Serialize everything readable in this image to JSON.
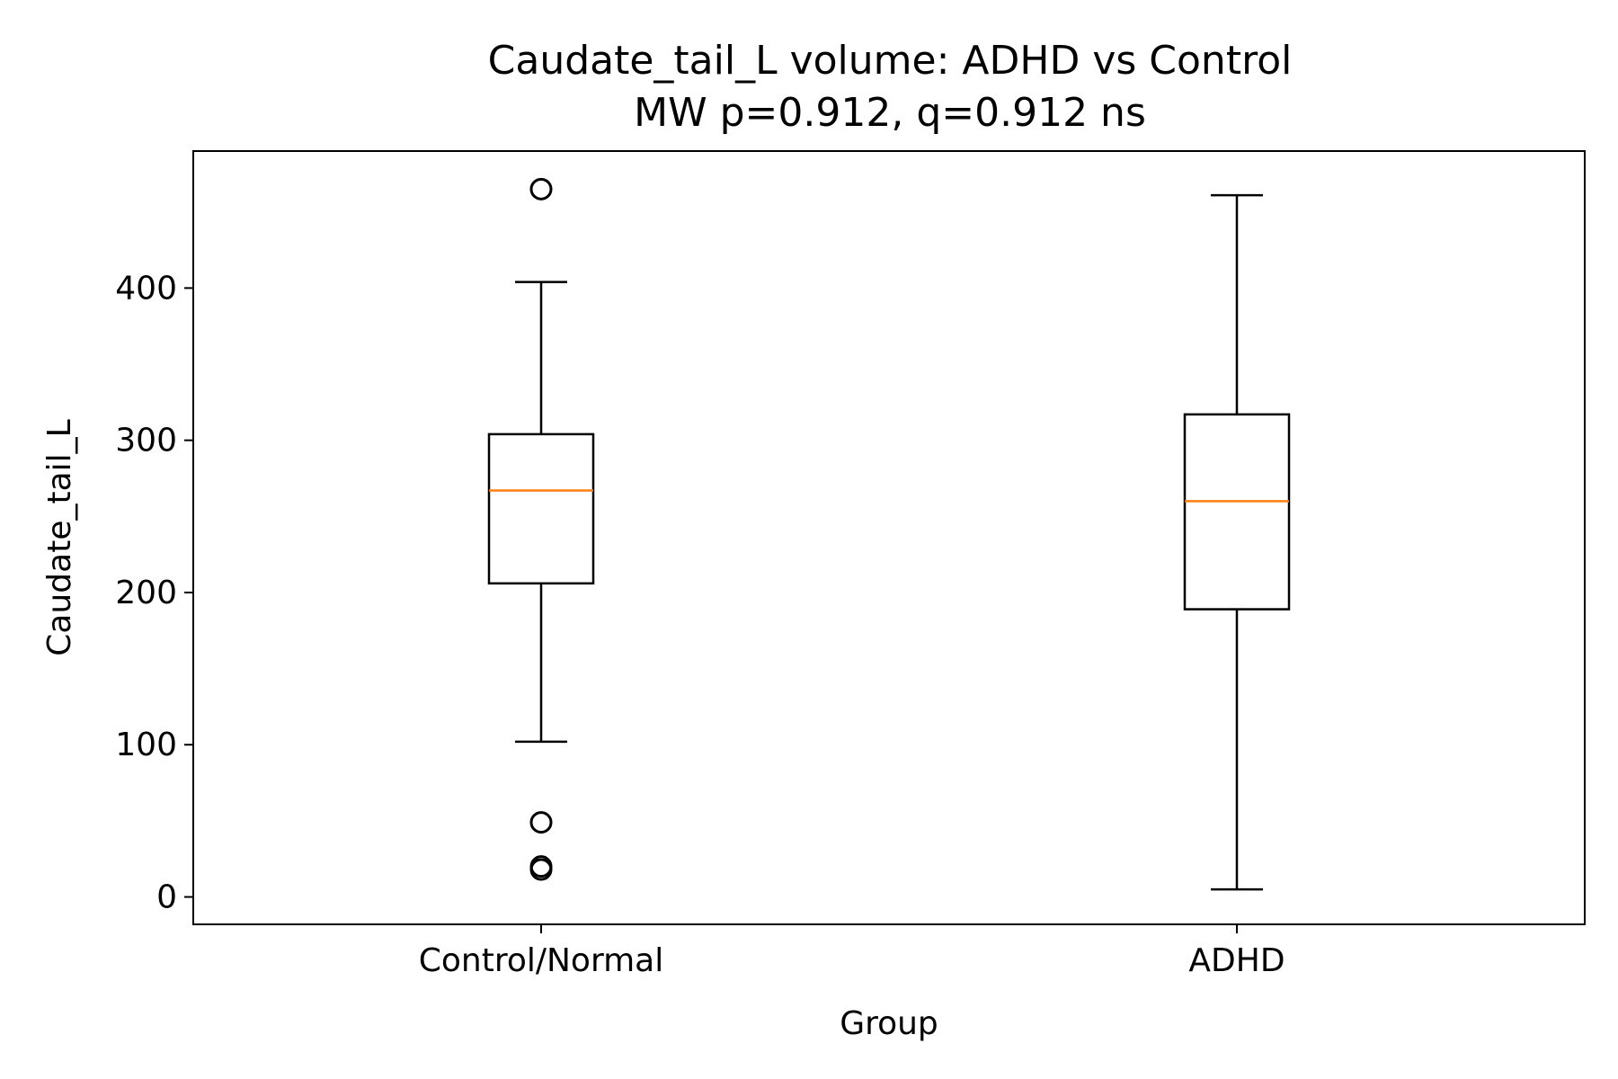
{
  "chart_data": {
    "type": "box",
    "title": "Caudate_tail_L volume: ADHD vs Control",
    "subtitle": "MW p=0.912, q=0.912 ns",
    "xlabel": "Group",
    "ylabel": "Caudate_tail_L",
    "ylim": [
      -18,
      490
    ],
    "yticks": [
      0,
      100,
      200,
      300,
      400
    ],
    "grid": false,
    "categories": [
      "Control/Normal",
      "ADHD"
    ],
    "boxes": [
      {
        "category": "Control/Normal",
        "whisker_low": 102,
        "q1": 206,
        "median": 267,
        "q3": 304,
        "whisker_high": 404,
        "outliers": [
          465,
          49,
          20,
          18
        ]
      },
      {
        "category": "ADHD",
        "whisker_low": 5,
        "q1": 189,
        "median": 260,
        "q3": 317,
        "whisker_high": 461,
        "outliers": []
      }
    ],
    "colors": {
      "box": "#000000",
      "median": "#ff7f0e",
      "outlier": "#000000"
    }
  }
}
